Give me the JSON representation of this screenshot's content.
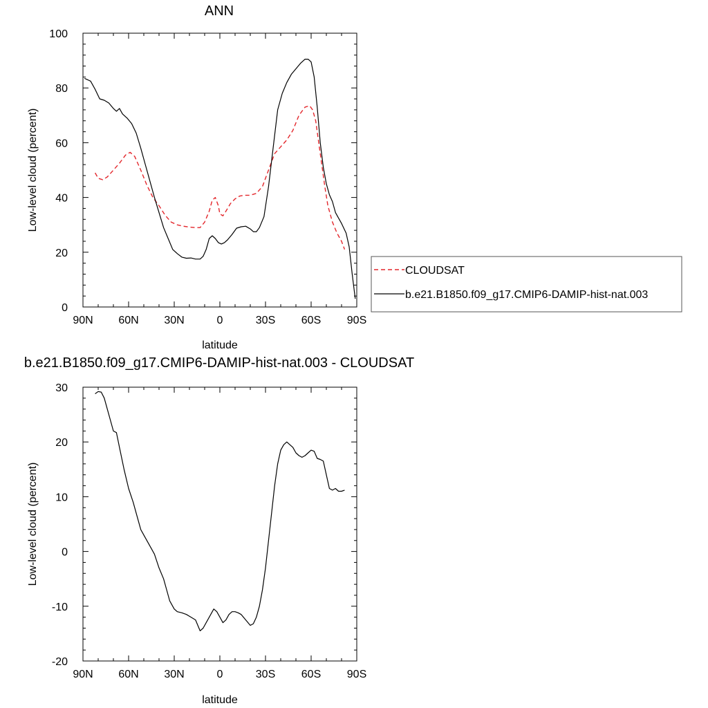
{
  "chart_data": [
    {
      "type": "line",
      "title": "ANN",
      "xlabel": "latitude",
      "ylabel": "Low-level cloud (percent)",
      "xlim": [
        90,
        -90
      ],
      "ylim": [
        0,
        100
      ],
      "xticks": [
        {
          "value": 90,
          "label": "90N"
        },
        {
          "value": 60,
          "label": "60N"
        },
        {
          "value": 30,
          "label": "30N"
        },
        {
          "value": 0,
          "label": "0"
        },
        {
          "value": -30,
          "label": "30S"
        },
        {
          "value": -60,
          "label": "60S"
        },
        {
          "value": -90,
          "label": "90S"
        }
      ],
      "yticks": [
        0,
        20,
        40,
        60,
        80,
        100
      ],
      "legend_position": "right",
      "series": [
        {
          "name": "CLOUDSAT",
          "color": "#e3262b",
          "style": "dashed",
          "x": [
            82,
            80,
            77,
            74,
            70,
            66,
            62,
            59,
            56,
            52,
            48,
            44,
            40,
            36,
            32,
            28,
            24,
            20,
            16,
            13,
            10,
            7,
            5,
            3,
            1,
            0,
            -2,
            -4,
            -7,
            -10,
            -13,
            -16,
            -20,
            -24,
            -28,
            -32,
            -36,
            -40,
            -44,
            -48,
            -52,
            -56,
            -59,
            -61,
            -63,
            -65,
            -67,
            -69,
            -71,
            -74,
            -77,
            -80,
            -82
          ],
          "values": [
            49,
            47,
            46.5,
            47.5,
            50,
            52.5,
            55.5,
            56.5,
            55,
            50,
            44.5,
            40,
            37,
            33.5,
            31,
            30,
            29.5,
            29.2,
            29,
            29,
            31,
            35,
            39,
            40,
            37,
            34,
            33.3,
            35,
            37.8,
            39.5,
            40.5,
            40.8,
            40.8,
            41.5,
            44,
            50,
            56,
            58.5,
            61,
            64.5,
            70,
            73,
            73.5,
            72,
            68,
            60,
            52,
            44,
            37,
            31,
            27,
            24,
            21
          ]
        },
        {
          "name": "b.e21.B1850.f09_g17.CMIP6-DAMIP-hist-nat.003",
          "color": "#000000",
          "style": "solid",
          "x": [
            89,
            87,
            85,
            82,
            79,
            76,
            73,
            70,
            68,
            66,
            64,
            61,
            58,
            55,
            52,
            49,
            46,
            43,
            40,
            37,
            34,
            31,
            28,
            25,
            22,
            19,
            16,
            13,
            11,
            9,
            7,
            5,
            3,
            1,
            -1,
            -3,
            -5,
            -8,
            -11,
            -14,
            -17,
            -20,
            -22,
            -24,
            -26,
            -29,
            -32,
            -35,
            -38,
            -41,
            -44,
            -47,
            -50,
            -53,
            -56,
            -58,
            -60,
            -62,
            -64,
            -66,
            -68,
            -70,
            -72,
            -74,
            -76,
            -78,
            -80,
            -83,
            -85,
            -87,
            -89
          ],
          "values": [
            83.5,
            83,
            82.5,
            79.5,
            76,
            75.5,
            74.5,
            72.5,
            71.5,
            72.5,
            70.5,
            69,
            67,
            63.5,
            58,
            52,
            46,
            40,
            34.5,
            29,
            25,
            21,
            19.5,
            18.2,
            17.8,
            17.9,
            17.5,
            17.5,
            18.5,
            21,
            25,
            26,
            25,
            23.5,
            23,
            23.5,
            24.5,
            26.5,
            28.8,
            29.3,
            29.5,
            28.5,
            27.5,
            27.5,
            29,
            33,
            44,
            58,
            72,
            78,
            82,
            85,
            87,
            89,
            90.5,
            90.5,
            89.5,
            84,
            73,
            60,
            51,
            45,
            41,
            38.5,
            34.5,
            32.5,
            30.5,
            27,
            22,
            12,
            3
          ]
        }
      ]
    },
    {
      "type": "line",
      "title": "b.e21.B1850.f09_g17.CMIP6-DAMIP-hist-nat.003 - CLOUDSAT",
      "xlabel": "latitude",
      "ylabel": "Low-level cloud (percent)",
      "xlim": [
        90,
        -90
      ],
      "ylim": [
        -20,
        30
      ],
      "xticks": [
        {
          "value": 90,
          "label": "90N"
        },
        {
          "value": 60,
          "label": "60N"
        },
        {
          "value": 30,
          "label": "30N"
        },
        {
          "value": 0,
          "label": "0"
        },
        {
          "value": -30,
          "label": "30S"
        },
        {
          "value": -60,
          "label": "60S"
        },
        {
          "value": -90,
          "label": "90S"
        }
      ],
      "yticks": [
        -20,
        -10,
        0,
        10,
        20,
        30
      ],
      "series": [
        {
          "color": "#000000",
          "style": "solid",
          "x": [
            82,
            80,
            78,
            76,
            74,
            72,
            70,
            68,
            66,
            63,
            60,
            57,
            55,
            52,
            49,
            47,
            45,
            43,
            40,
            37,
            35,
            33,
            30,
            28,
            25,
            22,
            19,
            16,
            13,
            11,
            9,
            6,
            4,
            2,
            0,
            -2,
            -4,
            -6,
            -8,
            -10,
            -12,
            -14,
            -17,
            -20,
            -22,
            -24,
            -26,
            -28,
            -30,
            -32,
            -34,
            -36,
            -38,
            -40,
            -42,
            -44,
            -46,
            -48,
            -50,
            -52,
            -54,
            -56,
            -58,
            -60,
            -62,
            -64,
            -66,
            -68,
            -70,
            -72,
            -74,
            -76,
            -78,
            -80,
            -82
          ],
          "values": [
            28.8,
            29.2,
            29.1,
            28,
            26,
            24,
            22,
            21.7,
            19,
            15,
            11.5,
            9,
            7,
            4,
            2.5,
            1.5,
            0.5,
            -0.5,
            -3,
            -5,
            -7,
            -9,
            -10.5,
            -11,
            -11.2,
            -11.5,
            -12,
            -12.5,
            -14.5,
            -14,
            -13,
            -11.5,
            -10.5,
            -11,
            -12,
            -13,
            -12.5,
            -11.5,
            -11,
            -11,
            -11.2,
            -11.5,
            -12.5,
            -13.5,
            -13.2,
            -12,
            -10,
            -7,
            -3,
            2,
            7,
            12,
            16,
            18.5,
            19.5,
            20,
            19.5,
            19,
            18,
            17.5,
            17.2,
            17.5,
            18,
            18.5,
            18.3,
            17,
            16.8,
            16.5,
            14,
            11.5,
            11.2,
            11.5,
            11,
            11,
            11.2
          ]
        }
      ]
    }
  ]
}
